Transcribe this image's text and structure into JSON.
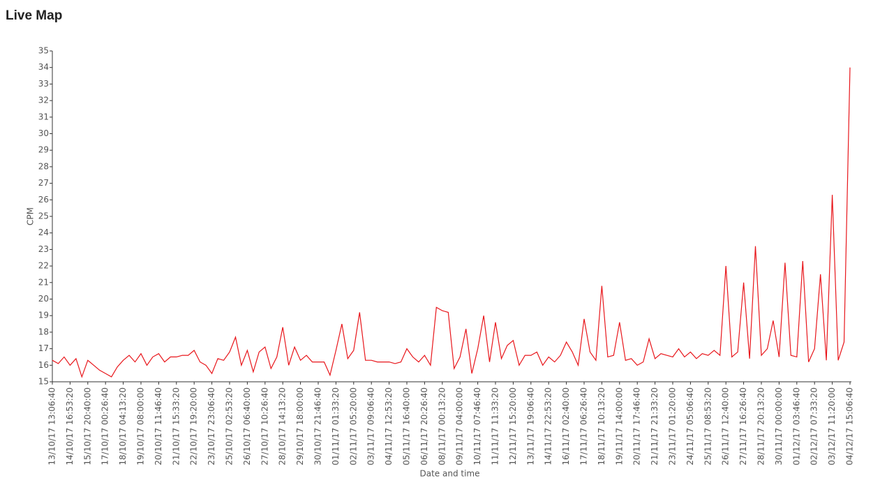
{
  "header": {
    "title": "Live Map"
  },
  "chart_data": {
    "type": "line",
    "x_label": "Date and time",
    "y_label": "CPM",
    "categories": [
      "13/10/17 13:06:40",
      null,
      null,
      "14/10/17 16:53:20",
      null,
      null,
      "15/10/17 20:40:00",
      null,
      null,
      "17/10/17 00:26:40",
      null,
      null,
      "18/10/17 04:13:20",
      null,
      null,
      "19/10/17 08:00:00",
      null,
      null,
      "20/10/17 11:46:40",
      null,
      null,
      "21/10/17 15:33:20",
      null,
      null,
      "22/10/17 19:20:00",
      null,
      null,
      "23/10/17 23:06:40",
      null,
      null,
      "25/10/17 02:53:20",
      null,
      null,
      "26/10/17 06:40:00",
      null,
      null,
      "27/10/17 10:26:40",
      null,
      null,
      "28/10/17 14:13:20",
      null,
      null,
      "29/10/17 18:00:00",
      null,
      null,
      "30/10/17 21:46:40",
      null,
      null,
      "01/11/17 01:33:20",
      null,
      null,
      "02/11/17 05:20:00",
      null,
      null,
      "03/11/17 09:06:40",
      null,
      null,
      "04/11/17 12:53:20",
      null,
      null,
      "05/11/17 16:40:00",
      null,
      null,
      "06/11/17 20:26:40",
      null,
      null,
      "08/11/17 00:13:20",
      null,
      null,
      "09/11/17 04:00:00",
      null,
      null,
      "10/11/17 07:46:40",
      null,
      null,
      "11/11/17 11:33:20",
      null,
      null,
      "12/11/17 15:20:00",
      null,
      null,
      "13/11/17 19:06:40",
      null,
      null,
      "14/11/17 22:53:20",
      null,
      null,
      "16/11/17 02:40:00",
      null,
      null,
      "17/11/17 06:26:40",
      null,
      null,
      "18/11/17 10:13:20",
      null,
      null,
      "19/11/17 14:00:00",
      null,
      null,
      "20/11/17 17:46:40",
      null,
      null,
      "21/11/17 21:33:20",
      null,
      null,
      "23/11/17 01:20:00",
      null,
      null,
      "24/11/17 05:06:40",
      null,
      null,
      "25/11/17 08:53:20",
      null,
      null,
      "26/11/17 12:40:00",
      null,
      null,
      "27/11/17 16:26:40",
      null,
      null,
      "28/11/17 20:13:20",
      null,
      null,
      "30/11/17 00:00:00",
      null,
      null,
      "01/12/17 03:46:40",
      null,
      null,
      "02/12/17 07:33:20",
      null,
      null,
      "03/12/17 11:20:00",
      null,
      null,
      "04/12/17 15:06:40"
    ],
    "color": "#e8161b",
    "values": [
      16.3,
      16.1,
      16.5,
      16.0,
      16.4,
      15.3,
      16.3,
      16.0,
      15.7,
      15.5,
      15.3,
      15.9,
      16.3,
      16.6,
      16.2,
      16.7,
      16.0,
      16.5,
      16.7,
      16.2,
      16.5,
      16.5,
      16.6,
      16.6,
      16.9,
      16.2,
      16.0,
      15.5,
      16.4,
      16.3,
      16.8,
      17.7,
      16.0,
      16.9,
      15.6,
      16.8,
      17.1,
      15.8,
      16.5,
      18.3,
      16.0,
      17.1,
      16.3,
      16.6,
      16.2,
      16.2,
      16.2,
      15.4,
      16.9,
      18.5,
      16.4,
      16.9,
      19.2,
      16.3,
      16.3,
      16.2,
      16.2,
      16.2,
      16.1,
      16.2,
      17.0,
      16.5,
      16.2,
      16.6,
      16.0,
      19.5,
      19.3,
      19.2,
      15.8,
      16.5,
      18.2,
      15.5,
      17.0,
      19.0,
      16.2,
      18.6,
      16.4,
      17.2,
      17.5,
      16.0,
      16.6,
      16.6,
      16.8,
      16.0,
      16.5,
      16.2,
      16.6,
      17.4,
      16.8,
      16.0,
      18.8,
      16.8,
      16.3,
      20.8,
      16.5,
      16.6,
      18.6,
      16.3,
      16.4,
      16.0,
      16.2,
      17.6,
      16.4,
      16.7,
      16.6,
      16.5,
      17.0,
      16.5,
      16.8,
      16.4,
      16.7,
      16.6,
      16.9,
      16.6,
      22.0,
      16.5,
      16.8,
      21.0,
      16.4,
      23.2,
      16.6,
      17.0,
      18.7,
      16.5,
      22.2,
      16.6,
      16.5,
      22.3,
      16.2,
      17.0,
      21.5,
      16.3,
      26.3,
      16.3,
      17.4,
      34.0
    ],
    "ylim": [
      15,
      35
    ],
    "yticks": [
      15,
      16,
      17,
      18,
      19,
      20,
      21,
      22,
      23,
      24,
      25,
      26,
      27,
      28,
      29,
      30,
      31,
      32,
      33,
      34,
      35
    ]
  }
}
